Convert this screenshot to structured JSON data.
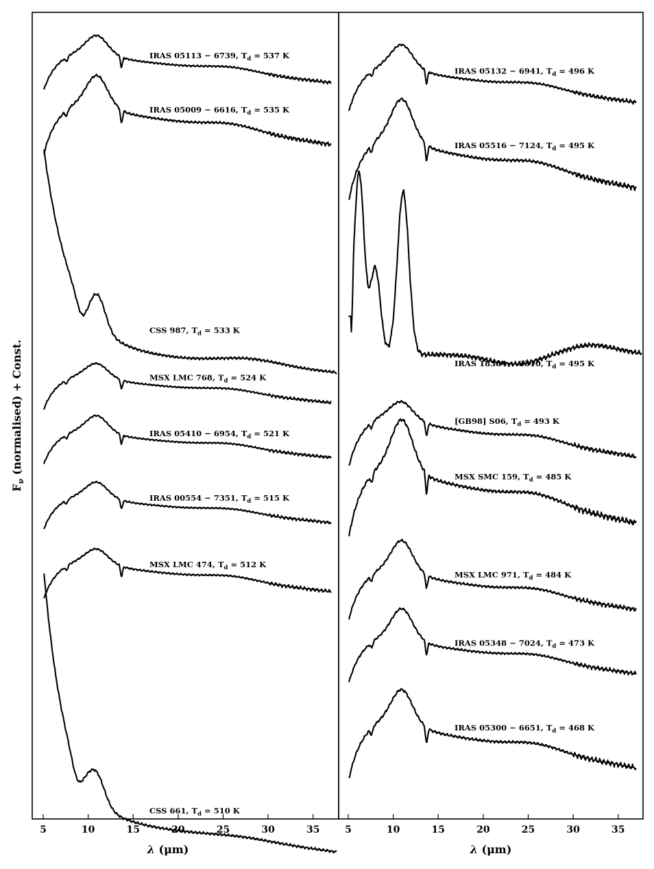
{
  "chart_data": [
    {
      "type": "line",
      "panel": "left",
      "xlabel": "λ (μm)",
      "ylabel": "F_ν (normalised) + Const.",
      "xlim": [
        4.8,
        37.6
      ],
      "xticks": [
        5,
        10,
        15,
        20,
        25,
        30,
        35
      ],
      "yticks": "none",
      "grid": false,
      "legend": "none",
      "series": [
        {
          "name": "IRAS 05113−6739, T_d = 537 K",
          "label_main": "IRAS 05113 − 6739,  T",
          "label_tail": " = 537 K",
          "offset": 0.0,
          "shape": "oxygen",
          "feature_amp": 0.55,
          "x_end": 37.0
        },
        {
          "name": "IRAS 05009−6616, T_d = 535 K",
          "label_main": "IRAS 05009 − 6616,  T",
          "label_tail": " = 535 K",
          "offset": 0.6,
          "shape": "oxygen",
          "feature_amp": 0.7,
          "x_end": 37.0
        },
        {
          "name": "CSS 987, T_d = 533 K",
          "label_main": "CSS 987,  T",
          "label_tail": " = 533 K",
          "offset": 1.15,
          "shape": "carbon_steep",
          "feature_amp": 0.4,
          "x_end": 37.6
        },
        {
          "name": "MSX LMC 768, T_d = 524 K",
          "label_main": "MSX LMC 768,  T",
          "label_tail": " = 524 K",
          "offset": 3.55,
          "shape": "oxygen",
          "feature_amp": 0.45,
          "x_end": 37.0
        },
        {
          "name": "IRAS 05410−6954, T_d = 521 K",
          "label_main": "IRAS 05410 − 6954,  T",
          "label_tail": " = 521 K",
          "offset": 4.1,
          "shape": "oxygen",
          "feature_amp": 0.55,
          "x_end": 37.0
        },
        {
          "name": "IRAS 00554−7351, T_d = 515 K",
          "label_main": "IRAS 00554 − 7351,  T",
          "label_tail": " = 515 K",
          "offset": 4.7,
          "shape": "oxygen",
          "feature_amp": 0.5,
          "x_end": 37.0
        },
        {
          "name": "MSX LMC 474, T_d = 512 K",
          "label_main": "MSX LMC 474,  T",
          "label_tail": " = 512 K",
          "offset": 5.3,
          "shape": "oxygen",
          "feature_amp": 0.4,
          "x_end": 37.0
        },
        {
          "name": "CSS 661, T_d = 510 K",
          "label_main": "CSS 661,  T",
          "label_tail": " = 510 K",
          "offset": 5.85,
          "shape": "carbon_shallow",
          "feature_amp": 0.35,
          "x_end": 37.6
        }
      ]
    },
    {
      "type": "line",
      "panel": "right",
      "xlabel": "λ (μm)",
      "xlim": [
        4.8,
        37.6
      ],
      "xticks": [
        5,
        10,
        15,
        20,
        25,
        30,
        35
      ],
      "yticks": "none",
      "grid": false,
      "legend": "none",
      "series": [
        {
          "name": "IRAS 05132−6941, T_d = 496 K",
          "label_main": "IRAS 05132 − 6941,  T",
          "label_tail": " = 496 K",
          "offset": 0.0,
          "shape": "oxygen",
          "feature_amp": 0.55,
          "x_end": 37.0
        },
        {
          "name": "IRAS 05516−7124, T_d = 495 K",
          "label_main": "IRAS 05516 − 7124,  T",
          "label_tail": " = 495 K",
          "offset": 0.85,
          "shape": "oxygen",
          "feature_amp": 0.75,
          "x_end": 37.0
        },
        {
          "name": "IRAS 18384−3310, T_d = 495 K",
          "label_main": "IRAS 18384 − 3310,  T",
          "label_tail": " = 495 K",
          "offset": 1.55,
          "shape": "absorption",
          "feature_amp": 1.0,
          "x_end": 37.6
        },
        {
          "name": "[GB98] S06, T_d = 493 K",
          "label_main": "[GB98] S06,  T",
          "label_tail": " = 493 K",
          "offset": 3.55,
          "shape": "oxygen",
          "feature_amp": 0.35,
          "x_end": 37.0
        },
        {
          "name": "MSX SMC 159, T_d = 485 K",
          "label_main": "MSX SMC 159,  T",
          "label_tail": " = 485 K",
          "offset": 4.05,
          "shape": "oxygen",
          "feature_amp": 0.8,
          "x_end": 37.0
        },
        {
          "name": "MSX LMC 971, T_d = 484 K",
          "label_main": "MSX LMC 971,  T",
          "label_tail": " = 484 K",
          "offset": 5.0,
          "shape": "oxygen",
          "feature_amp": 0.7,
          "x_end": 37.0
        },
        {
          "name": "IRAS 05348−7024, T_d = 473 K",
          "label_main": "IRAS 05348 − 7024,  T",
          "label_tail": " = 473 K",
          "offset": 5.75,
          "shape": "oxygen",
          "feature_amp": 0.75,
          "x_end": 37.0
        },
        {
          "name": "IRAS 05300−6651, T_d = 468 K",
          "label_main": "IRAS 05300 − 6651,  T",
          "label_tail": " = 468 K",
          "offset": 6.5,
          "shape": "oxygen",
          "feature_amp": 0.65,
          "x_end": 37.0
        }
      ]
    }
  ],
  "labels": {
    "ylabel_main": "F",
    "ylabel_sub": "ν",
    "ylabel_tail": " (normalised) + Const.",
    "xlabel_sym": "λ",
    "xlabel_unit": " (μm)",
    "sub_d": "d"
  }
}
